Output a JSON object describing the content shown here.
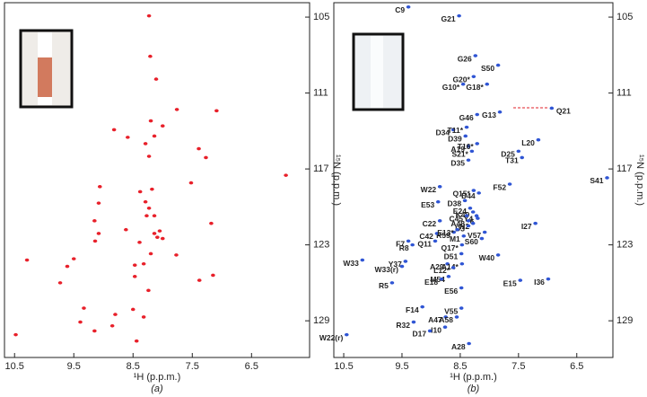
{
  "chart_data": [
    {
      "type": "scatter",
      "caption": "(a)",
      "x_label": "¹H (p.p.m.)",
      "y_label": "¹⁵N (p.p.m.)",
      "xlim": [
        10.67,
        5.52
      ],
      "ylim": [
        103.86,
        131.9
      ],
      "xticks": [
        10.5,
        9.5,
        8.5,
        7.5,
        6.5
      ],
      "yticks": [
        105,
        111,
        117,
        123,
        129
      ],
      "series": [
        {
          "color": "#e8202a",
          "x": [
            8.23,
            8.21,
            8.11,
            7.76,
            7.09,
            8.2,
            8.82,
            8.59,
            8.0,
            8.14,
            8.29,
            7.39,
            7.27,
            8.23,
            5.92,
            7.52,
            8.18,
            9.06,
            8.38,
            8.29,
            9.08,
            8.23,
            8.14,
            9.15,
            8.27,
            7.18,
            8.62,
            8.14,
            8.05,
            8.09,
            9.08,
            8.0,
            8.39,
            9.14,
            7.77,
            8.2,
            9.5,
            10.29,
            9.61,
            8.47,
            8.32,
            8.47,
            7.15,
            7.38,
            9.73,
            8.24,
            9.33,
            8.5,
            8.8,
            8.32,
            9.39,
            8.85,
            9.15,
            10.48,
            8.44
          ],
          "values": [
            104.9,
            108.1,
            109.9,
            112.3,
            112.4,
            113.2,
            113.9,
            114.5,
            113.6,
            114.4,
            115.0,
            115.4,
            116.1,
            116.0,
            117.5,
            118.1,
            118.6,
            118.4,
            118.8,
            119.6,
            119.7,
            120.1,
            120.7,
            121.1,
            120.7,
            121.3,
            121.8,
            122.1,
            121.9,
            122.4,
            122.1,
            122.5,
            122.8,
            122.7,
            123.8,
            123.7,
            124.1,
            124.2,
            124.7,
            124.6,
            124.5,
            125.5,
            125.4,
            125.8,
            126.0,
            126.6,
            128.0,
            128.1,
            128.5,
            128.7,
            129.1,
            129.4,
            129.8,
            130.1,
            130.6
          ]
        }
      ]
    },
    {
      "type": "scatter",
      "caption": "(b)",
      "x_label": "¹H (p.p.m.)",
      "y_label": "¹⁵N (p.p.m.)",
      "xlim": [
        10.67,
        5.88
      ],
      "ylim": [
        103.86,
        131.9
      ],
      "xticks": [
        10.5,
        9.5,
        8.5,
        7.5,
        6.5
      ],
      "yticks": [
        105,
        111,
        117,
        123,
        129
      ],
      "series": [
        {
          "color": "#2f55d4",
          "label_color": "#1a1a1a",
          "labels": [
            "C9",
            "G21",
            "G26",
            "S50",
            "G13",
            "G46",
            "D34",
            "D39",
            "L20",
            "A19",
            "D25",
            "T31",
            "D35",
            "S41",
            "F52",
            "W22",
            "D44",
            "D38",
            "E53",
            "E24",
            "K49",
            "Y4",
            "6",
            "C45",
            "A48",
            "N2",
            "C22",
            "D3",
            "I27",
            "R59",
            "M1",
            "C42",
            "V57",
            "S60",
            "Q11",
            "F7",
            "R8",
            "D51",
            "W40",
            "Y37",
            "W33",
            "A29",
            "W33(r)",
            "M54",
            "E15",
            "I36",
            "R5",
            "E18",
            "E56",
            "F14",
            "V55",
            "A47",
            "A58",
            "R32",
            "I10",
            "D17",
            "W22(r)",
            "A28"
          ],
          "x": [
            9.39,
            8.52,
            8.24,
            7.85,
            7.82,
            8.21,
            8.62,
            8.41,
            7.16,
            8.36,
            7.5,
            7.44,
            8.36,
            5.98,
            7.65,
            8.85,
            8.18,
            8.42,
            8.88,
            8.33,
            8.28,
            8.22,
            8.2,
            8.39,
            8.36,
            8.28,
            8.85,
            8.36,
            7.21,
            8.61,
            8.44,
            8.9,
            8.08,
            8.13,
            8.93,
            9.39,
            9.32,
            8.48,
            7.85,
            9.44,
            10.18,
            8.72,
            9.5,
            8.7,
            7.47,
            6.99,
            9.67,
            8.82,
            8.48,
            9.15,
            8.48,
            8.75,
            8.56,
            9.3,
            8.76,
            9.02,
            10.45,
            8.35
          ],
          "values": [
            104.2,
            104.9,
            108.05,
            108.8,
            112.5,
            112.7,
            113.9,
            114.4,
            114.7,
            115.2,
            115.6,
            116.1,
            116.3,
            117.7,
            118.2,
            118.4,
            118.9,
            119.5,
            119.6,
            120.1,
            120.4,
            120.7,
            120.9,
            120.7,
            121.1,
            121.3,
            121.1,
            121.5,
            121.3,
            122.0,
            122.3,
            122.1,
            122.0,
            122.5,
            122.7,
            122.7,
            123.0,
            123.7,
            123.8,
            124.3,
            124.2,
            124.5,
            124.7,
            125.5,
            125.8,
            125.7,
            126.0,
            125.7,
            126.4,
            127.9,
            128.0,
            128.7,
            128.7,
            129.1,
            129.5,
            129.8,
            130.1,
            130.8
          ]
        },
        {
          "color": "#2f55d4",
          "label_color": "#b23fc4",
          "labels": [
            "G20*",
            "G18*",
            "G10*",
            "T11*",
            "T16*",
            "S21*",
            "Q15*",
            "E13*",
            "Q17*",
            "A14*",
            "L12*"
          ],
          "x": [
            8.27,
            8.04,
            8.45,
            8.39,
            8.21,
            8.3,
            8.27,
            8.55,
            8.47,
            8.47,
            8.62
          ],
          "values": [
            109.7,
            110.3,
            110.3,
            113.7,
            115.0,
            115.6,
            118.7,
            121.8,
            123.0,
            124.5,
            124.8
          ]
        },
        {
          "color": "#2f55d4",
          "label_color": "#e0202a",
          "labels": [
            "Q21"
          ],
          "x": [
            6.93
          ],
          "values": [
            112.2
          ]
        }
      ]
    }
  ]
}
